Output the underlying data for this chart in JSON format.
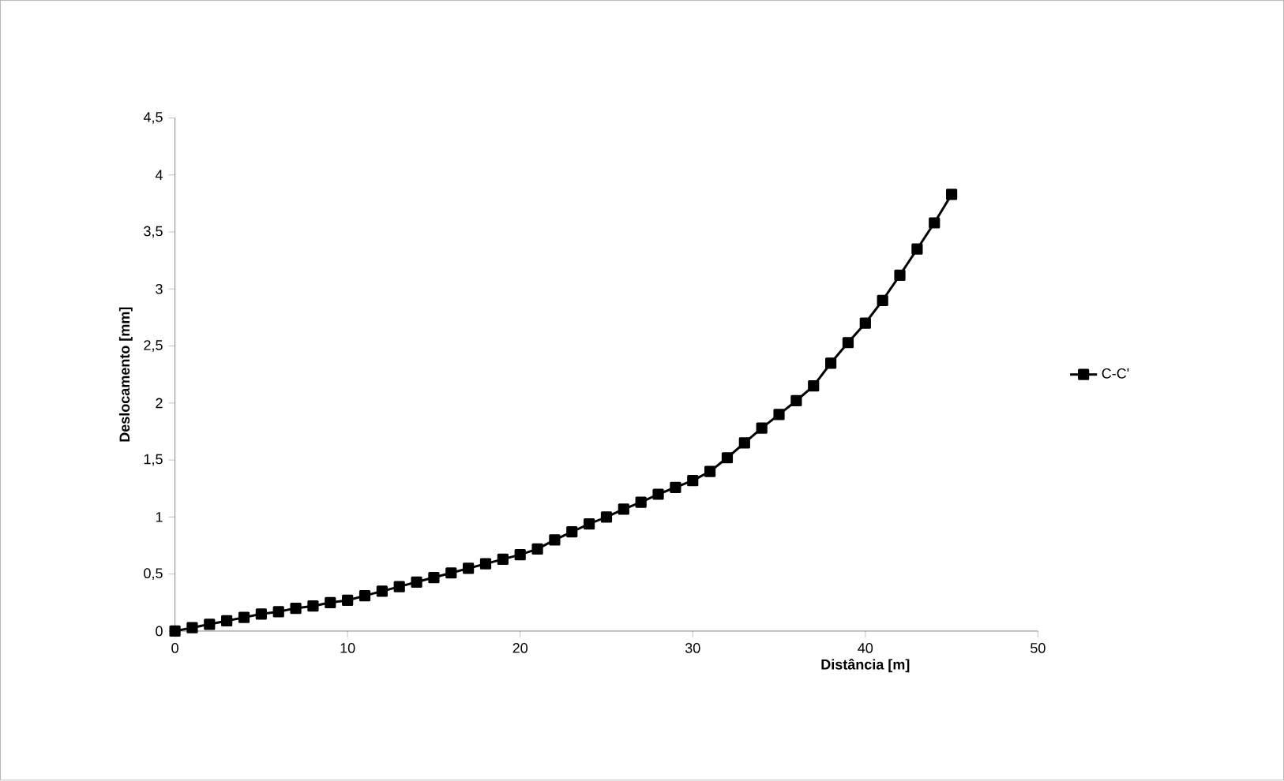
{
  "chart_data": {
    "type": "line",
    "xlabel": "Distância [m]",
    "ylabel": "Deslocamento [mm]",
    "x": [
      0,
      1,
      2,
      3,
      4,
      5,
      6,
      7,
      8,
      9,
      10,
      11,
      12,
      13,
      14,
      15,
      16,
      17,
      18,
      19,
      20,
      21,
      22,
      23,
      24,
      25,
      26,
      27,
      28,
      29,
      30,
      31,
      32,
      33,
      34,
      35,
      36,
      37,
      38,
      39,
      40,
      41,
      42,
      43,
      44,
      45
    ],
    "series": [
      {
        "name": "C-C'",
        "color": "#000000",
        "values": [
          0,
          0.03,
          0.06,
          0.09,
          0.12,
          0.15,
          0.17,
          0.2,
          0.22,
          0.25,
          0.27,
          0.31,
          0.35,
          0.39,
          0.43,
          0.47,
          0.51,
          0.55,
          0.59,
          0.63,
          0.67,
          0.72,
          0.8,
          0.87,
          0.94,
          1.0,
          1.07,
          1.13,
          1.2,
          1.26,
          1.32,
          1.4,
          1.52,
          1.65,
          1.78,
          1.9,
          2.02,
          2.15,
          2.35,
          2.53,
          2.7,
          2.9,
          3.12,
          3.35,
          3.58,
          3.83
        ]
      }
    ],
    "xlim": [
      0,
      50
    ],
    "ylim": [
      0,
      4.5
    ],
    "xticks": [
      0,
      10,
      20,
      30,
      40,
      50
    ],
    "yticks": [
      {
        "value": 0,
        "label": "0"
      },
      {
        "value": 0.5,
        "label": "0,5"
      },
      {
        "value": 1,
        "label": "1"
      },
      {
        "value": 1.5,
        "label": "1,5"
      },
      {
        "value": 2,
        "label": "2"
      },
      {
        "value": 2.5,
        "label": "2,5"
      },
      {
        "value": 3,
        "label": "3"
      },
      {
        "value": 3.5,
        "label": "3,5"
      },
      {
        "value": 4,
        "label": "4"
      },
      {
        "value": 4.5,
        "label": "4,5"
      }
    ],
    "grid": false,
    "legend": "right",
    "marker": "square",
    "line_style": "solid"
  }
}
